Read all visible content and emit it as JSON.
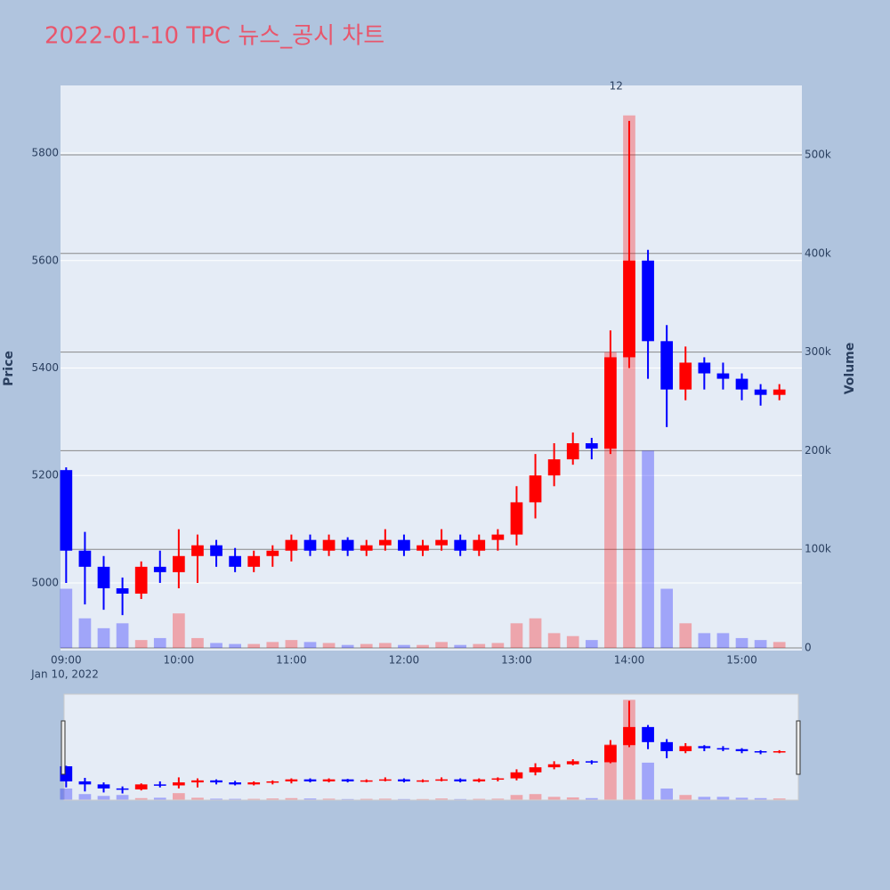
{
  "chart_data": {
    "type": "candlestick",
    "title": "2022-01-10 TPC 뉴스_공시 차트",
    "y_label": "Price",
    "y2_label": "Volume",
    "x_date_label": "Jan 10, 2022",
    "x": [
      "2022-01-10 09:00",
      "2022-01-10 09:10",
      "2022-01-10 09:20",
      "2022-01-10 09:30",
      "2022-01-10 09:40",
      "2022-01-10 09:50",
      "2022-01-10 10:00",
      "2022-01-10 10:10",
      "2022-01-10 10:20",
      "2022-01-10 10:30",
      "2022-01-10 10:40",
      "2022-01-10 10:50",
      "2022-01-10 11:00",
      "2022-01-10 11:10",
      "2022-01-10 11:20",
      "2022-01-10 11:30",
      "2022-01-10 11:40",
      "2022-01-10 11:50",
      "2022-01-10 12:00",
      "2022-01-10 12:10",
      "2022-01-10 12:20",
      "2022-01-10 12:30",
      "2022-01-10 12:40",
      "2022-01-10 12:50",
      "2022-01-10 13:00",
      "2022-01-10 13:10",
      "2022-01-10 13:20",
      "2022-01-10 13:30",
      "2022-01-10 13:40",
      "2022-01-10 13:50",
      "2022-01-10 14:00",
      "2022-01-10 14:10",
      "2022-01-10 14:20",
      "2022-01-10 14:30",
      "2022-01-10 14:40",
      "2022-01-10 14:50",
      "2022-01-10 15:00",
      "2022-01-10 15:10",
      "2022-01-10 15:20"
    ],
    "open": [
      5210,
      5060,
      5030,
      4990,
      4980,
      5030,
      5020,
      5050,
      5070,
      5050,
      5030,
      5050,
      5060,
      5080,
      5060,
      5080,
      5060,
      5070,
      5080,
      5060,
      5070,
      5080,
      5060,
      5080,
      5090,
      5150,
      5200,
      5230,
      5260,
      5250,
      5420,
      5600,
      5450,
      5360,
      5410,
      5390,
      5380,
      5360,
      5350
    ],
    "high": [
      5215,
      5095,
      5050,
      5010,
      5040,
      5060,
      5100,
      5090,
      5080,
      5065,
      5060,
      5070,
      5090,
      5090,
      5090,
      5085,
      5080,
      5100,
      5090,
      5080,
      5100,
      5090,
      5090,
      5100,
      5180,
      5240,
      5260,
      5280,
      5270,
      5470,
      5860,
      5620,
      5480,
      5440,
      5420,
      5410,
      5390,
      5370,
      5370
    ],
    "low": [
      5000,
      4960,
      4950,
      4940,
      4970,
      5000,
      4990,
      5000,
      5030,
      5020,
      5020,
      5030,
      5040,
      5050,
      5050,
      5050,
      5050,
      5060,
      5050,
      5050,
      5060,
      5050,
      5050,
      5060,
      5070,
      5120,
      5180,
      5220,
      5230,
      5240,
      5400,
      5380,
      5290,
      5340,
      5360,
      5360,
      5340,
      5330,
      5340
    ],
    "close": [
      5060,
      5030,
      4990,
      4980,
      5030,
      5020,
      5050,
      5070,
      5050,
      5030,
      5050,
      5060,
      5080,
      5060,
      5080,
      5060,
      5070,
      5080,
      5060,
      5070,
      5080,
      5060,
      5080,
      5090,
      5150,
      5200,
      5230,
      5260,
      5250,
      5420,
      5600,
      5450,
      5360,
      5410,
      5390,
      5380,
      5360,
      5350,
      5360
    ],
    "volume": [
      60000,
      30000,
      20000,
      25000,
      8000,
      10000,
      35000,
      10000,
      5000,
      4000,
      4000,
      6000,
      8000,
      6000,
      5000,
      3000,
      4000,
      5000,
      3000,
      3000,
      6000,
      3000,
      4000,
      5000,
      25000,
      30000,
      15000,
      12000,
      8000,
      300000,
      540000,
      200000,
      60000,
      25000,
      15000,
      15000,
      10000,
      8000,
      6000
    ],
    "increasing_color": "#ff0000",
    "decreasing_color": "#0000ff",
    "annotations": [
      {
        "x": "2022-01-10 13:53",
        "text": "12"
      }
    ],
    "xlim": [
      "2022-01-10 08:57",
      "2022-01-10 15:32"
    ],
    "xticks": [
      {
        "value": "2022-01-10 09:00",
        "label": "09:00"
      },
      {
        "value": "2022-01-10 10:00",
        "label": "10:00"
      },
      {
        "value": "2022-01-10 11:00",
        "label": "11:00"
      },
      {
        "value": "2022-01-10 12:00",
        "label": "12:00"
      },
      {
        "value": "2022-01-10 13:00",
        "label": "13:00"
      },
      {
        "value": "2022-01-10 14:00",
        "label": "14:00"
      },
      {
        "value": "2022-01-10 15:00",
        "label": "15:00"
      }
    ],
    "ylim": [
      4874,
      5926
    ],
    "yticks": [
      5000,
      5200,
      5400,
      5600,
      5800
    ],
    "y2lim": [
      -2700,
      570400
    ],
    "y2ticks": [
      0,
      {
        "value": 100000,
        "label": "100k"
      },
      {
        "value": 200000,
        "label": "200k"
      },
      {
        "value": 300000,
        "label": "300k"
      },
      {
        "value": 400000,
        "label": "400k"
      },
      {
        "value": 500000,
        "label": "500k"
      }
    ],
    "grid": true
  }
}
